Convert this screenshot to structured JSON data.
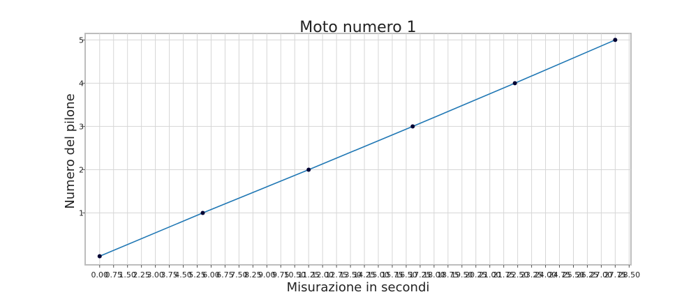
{
  "chart_data": {
    "type": "line",
    "title": "Moto numero 1",
    "xlabel": "Misurazione in secondi",
    "ylabel": "Numero del pilone",
    "x_ticks": [
      "0.00",
      "0.75",
      "1.50",
      "2.25",
      "3.00",
      "3.75",
      "4.50",
      "5.25",
      "6.00",
      "6.75",
      "7.50",
      "8.25",
      "9.00",
      "9.75",
      "10.50",
      "11.25",
      "12.00",
      "12.75",
      "13.50",
      "14.25",
      "15.00",
      "15.75",
      "16.50",
      "17.25",
      "18.00",
      "18.75",
      "19.50",
      "20.25",
      "21.00",
      "21.75",
      "22.50",
      "23.25",
      "24.00",
      "24.75",
      "25.50",
      "26.25",
      "27.00",
      "27.75",
      "28.50"
    ],
    "y_ticks": [
      1,
      2,
      3,
      4,
      5
    ],
    "xlim": [
      -0.78,
      28.6
    ],
    "ylim": [
      -0.2,
      5.15
    ],
    "grid": true,
    "colors": {
      "line": "#1f77b4",
      "point": "#000033",
      "grid": "#d6d6d6",
      "frame": "#bdbdbd"
    },
    "series": [
      {
        "x": [
          0.0,
          5.55,
          11.25,
          16.85,
          22.35,
          27.75
        ],
        "y": [
          0,
          1,
          2,
          3,
          4,
          5
        ]
      }
    ]
  }
}
